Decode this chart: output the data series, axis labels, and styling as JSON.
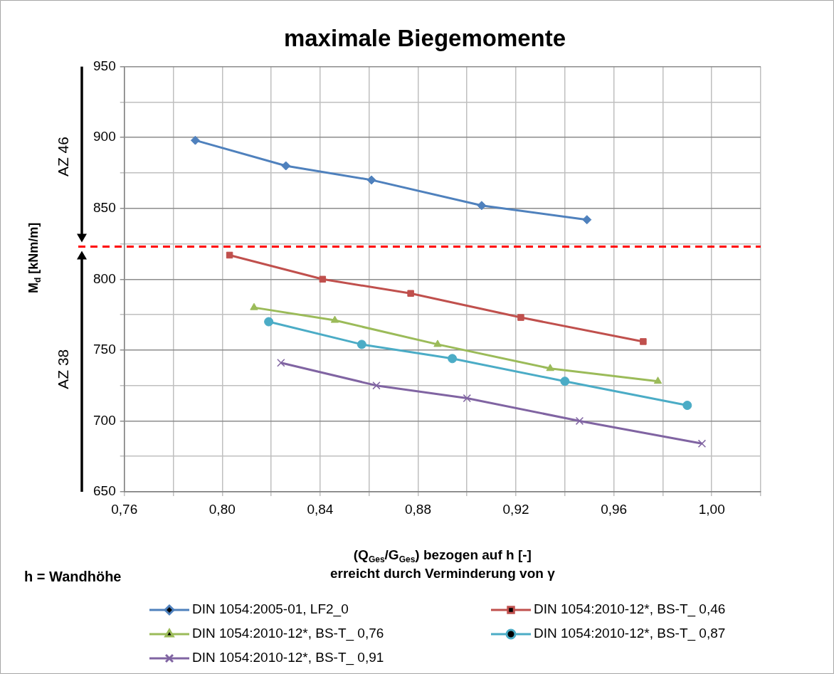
{
  "chart_data": {
    "type": "line",
    "title": "maximale Biegemomente",
    "xlabel": "(Q$_{Ges}$/G$_{Ges}$) bezogen auf h [-]\nerreicht durch Verminderung von γ",
    "ylabel": "M$_{d}$ [kNm/m]",
    "xlim": [
      0.76,
      1.02
    ],
    "xticks": [
      {
        "value": 0.76,
        "label": "0,76"
      },
      {
        "value": 0.78,
        "label": null
      },
      {
        "value": 0.8,
        "label": "0,80"
      },
      {
        "value": 0.82,
        "label": null
      },
      {
        "value": 0.84,
        "label": "0,84"
      },
      {
        "value": 0.86,
        "label": null
      },
      {
        "value": 0.88,
        "label": "0,88"
      },
      {
        "value": 0.9,
        "label": null
      },
      {
        "value": 0.92,
        "label": "0,92"
      },
      {
        "value": 0.94,
        "label": null
      },
      {
        "value": 0.96,
        "label": "0,96"
      },
      {
        "value": 0.98,
        "label": null
      },
      {
        "value": 1.0,
        "label": "1,00"
      },
      {
        "value": 1.02,
        "label": null
      }
    ],
    "ylim": [
      650,
      950
    ],
    "yticks": [
      650,
      {
        "value": 675,
        "label": null
      },
      700,
      {
        "value": 725,
        "label": null
      },
      750,
      {
        "value": 775,
        "label": null
      },
      800,
      {
        "value": 825,
        "label": null
      },
      850,
      {
        "value": 875,
        "label": null
      },
      900,
      {
        "value": 925,
        "label": null
      },
      950
    ],
    "grid": true,
    "legend": "bottom",
    "line_style": "solid",
    "series": [
      {
        "name": "DIN 1054:2005-01, LF2_0",
        "color": "#4f81bd",
        "marker": "diamond",
        "x": [
          0.789,
          0.826,
          0.861,
          0.906,
          0.949
        ],
        "values": [
          898,
          880,
          870,
          852,
          842
        ]
      },
      {
        "name": "DIN 1054:2010-12*, BS-T_ 0,46",
        "color": "#c0504d",
        "marker": "square",
        "x": [
          0.803,
          0.841,
          0.877,
          0.922,
          0.972
        ],
        "values": [
          817,
          800,
          790,
          773,
          756
        ]
      },
      {
        "name": "DIN 1054:2010-12*, BS-T_ 0,76",
        "color": "#9bbb59",
        "marker": "triangle",
        "x": [
          0.813,
          0.846,
          0.888,
          0.934,
          0.978
        ],
        "values": [
          780,
          771,
          754,
          737,
          728
        ]
      },
      {
        "name": "DIN 1054:2010-12*, BS-T_ 0,87",
        "color": "#4bacc6",
        "marker": "circle",
        "x": [
          0.819,
          0.857,
          0.894,
          0.94,
          0.99
        ],
        "values": [
          770,
          754,
          744,
          728,
          711
        ]
      },
      {
        "name": "DIN 1054:2010-12*, BS-T_ 0,91",
        "color": "#8064a2",
        "marker": "cross",
        "x": [
          0.824,
          0.863,
          0.9,
          0.946,
          0.996
        ],
        "values": [
          741,
          725,
          716,
          700,
          684
        ]
      }
    ],
    "ref_lines": [
      {
        "axis": "y",
        "value": 823,
        "color": "#ff0000",
        "line_style": "dashed"
      }
    ],
    "annotations": [
      "AZ 46",
      "AZ 38",
      "h = Wandhöhe"
    ]
  }
}
